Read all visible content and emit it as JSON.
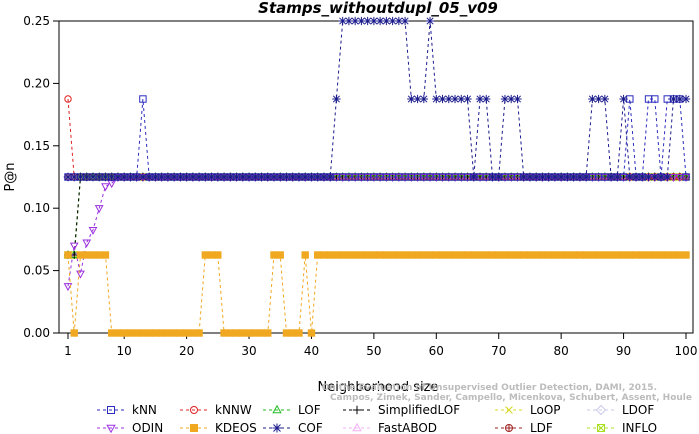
{
  "chart_data": {
    "type": "line",
    "title": "Stamps_withoutdupl_05_v09",
    "xlabel": "Neighborhood size",
    "ylabel": "P@n",
    "xlim": [
      1,
      100
    ],
    "ylim": [
      0,
      0.25
    ],
    "x_ticks": [
      1,
      10,
      20,
      30,
      40,
      50,
      60,
      70,
      80,
      90,
      100
    ],
    "x_tick_labels": [
      "1",
      "10",
      "20",
      "30",
      "40",
      "50",
      "60",
      "70",
      "80",
      "90",
      "100"
    ],
    "y_ticks": [
      0,
      0.05,
      0.1,
      0.15,
      0.2,
      0.25
    ],
    "y_tick_labels": [
      "0.00",
      "0.05",
      "0.10",
      "0.15",
      "0.20",
      "0.25"
    ],
    "watermark": "Campos, Zimek, Sander, Campello, Micenkova, Schubert, Assent, Houle: On the Evaluation of Unsupervised Outlier Detection, DAMI, 2015.",
    "legend_position": "bottom",
    "series": [
      {
        "name": "kNN",
        "color": "#2b2bbf",
        "marker": "square",
        "spec": [
          [
            1,
            12,
            0.125
          ],
          [
            13,
            13,
            0.1875
          ],
          [
            14,
            90,
            0.125
          ],
          [
            91,
            91,
            0.1875
          ],
          [
            92,
            93,
            0.125
          ],
          [
            94,
            95,
            0.1875
          ],
          [
            96,
            96,
            0.125
          ],
          [
            97,
            99,
            0.1875
          ],
          [
            100,
            100,
            0.125
          ]
        ]
      },
      {
        "name": "kNNW",
        "color": "#e02020",
        "marker": "circle",
        "spec": [
          [
            1,
            1,
            0.1875
          ],
          [
            2,
            100,
            0.125
          ]
        ]
      },
      {
        "name": "LOF",
        "color": "#22bb22",
        "marker": "triangle-up",
        "spec": [
          [
            1,
            1,
            0.0625
          ],
          [
            2,
            2,
            0.0625
          ],
          [
            3,
            100,
            0.125
          ]
        ]
      },
      {
        "name": "SimplifiedLOF",
        "color": "#000000",
        "marker": "plus",
        "spec": [
          [
            1,
            1,
            0.0625
          ],
          [
            2,
            2,
            0.0625
          ],
          [
            3,
            100,
            0.125
          ]
        ]
      },
      {
        "name": "LoOP",
        "color": "#d8d820",
        "marker": "x",
        "spec": [
          [
            1,
            100,
            0.125
          ]
        ]
      },
      {
        "name": "LDOF",
        "color": "#c8c8ec",
        "marker": "diamond",
        "spec": [
          [
            1,
            100,
            0.125
          ]
        ]
      },
      {
        "name": "ODIN",
        "color": "#9b30e0",
        "marker": "triangle-down",
        "spec": [
          [
            1,
            1,
            0.0375
          ],
          [
            2,
            2,
            0.07
          ],
          [
            3,
            3,
            0.0475
          ],
          [
            4,
            4,
            0.0725
          ],
          [
            5,
            5,
            0.0825
          ],
          [
            6,
            6,
            0.1
          ],
          [
            7,
            7,
            0.1175
          ],
          [
            8,
            8,
            0.12
          ],
          [
            9,
            100,
            0.125
          ]
        ]
      },
      {
        "name": "KDEOS",
        "color": "#f0a820",
        "marker": "square-filled",
        "spec": [
          [
            1,
            1,
            0.0625
          ],
          [
            2,
            2,
            0
          ],
          [
            3,
            6,
            0.0625
          ],
          [
            7,
            7,
            0.0625
          ],
          [
            8,
            22,
            0
          ],
          [
            23,
            25,
            0.0625
          ],
          [
            26,
            33,
            0
          ],
          [
            34,
            35,
            0.0625
          ],
          [
            36,
            38,
            0
          ],
          [
            39,
            39,
            0.0625
          ],
          [
            40,
            40,
            0
          ],
          [
            41,
            100,
            0.0625
          ]
        ]
      },
      {
        "name": "COF",
        "color": "#1a1a8c",
        "marker": "asterisk",
        "spec": [
          [
            1,
            43,
            0.125
          ],
          [
            44,
            44,
            0.1875
          ],
          [
            45,
            55,
            0.25
          ],
          [
            56,
            58,
            0.1875
          ],
          [
            59,
            59,
            0.25
          ],
          [
            60,
            65,
            0.1875
          ],
          [
            66,
            66,
            0.125
          ],
          [
            67,
            68,
            0.1875
          ],
          [
            69,
            70,
            0.125
          ],
          [
            71,
            73,
            0.1875
          ],
          [
            74,
            84,
            0.125
          ],
          [
            85,
            87,
            0.1875
          ],
          [
            88,
            89,
            0.125
          ],
          [
            90,
            90,
            0.1875
          ],
          [
            91,
            97,
            0.125
          ],
          [
            98,
            100,
            0.1875
          ]
        ]
      },
      {
        "name": "FastABOD",
        "color": "#f2b0f2",
        "marker": "triangle-up",
        "spec": [
          [
            1,
            100,
            0.125
          ]
        ]
      },
      {
        "name": "LDF",
        "color": "#9e2020",
        "marker": "circle-plus",
        "spec": [
          [
            1,
            100,
            0.125
          ]
        ]
      },
      {
        "name": "INFLO",
        "color": "#a8e020",
        "marker": "square-x",
        "spec": [
          [
            1,
            1,
            0.0625
          ],
          [
            2,
            2,
            0.0625
          ],
          [
            3,
            100,
            0.125
          ]
        ]
      }
    ]
  }
}
